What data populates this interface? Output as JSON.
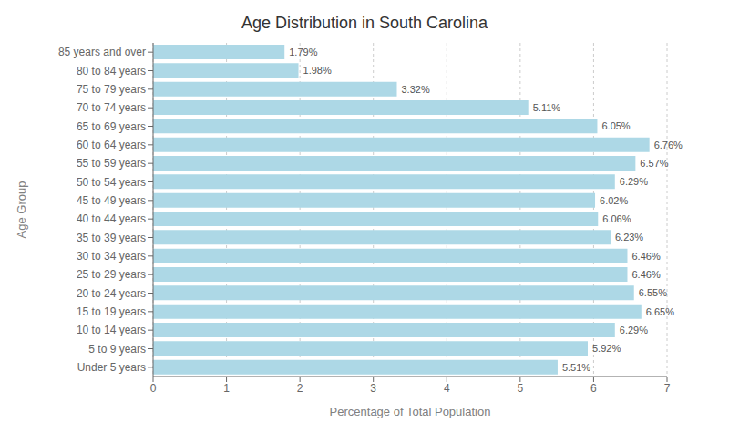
{
  "chart_data": {
    "type": "bar",
    "orientation": "horizontal",
    "title": "Age Distribution in South Carolina",
    "xlabel": "Percentage of Total Population",
    "ylabel": "Age Group",
    "categories": [
      "85 years and over",
      "80 to 84 years",
      "75 to 79 years",
      "70 to 74 years",
      "65 to 69 years",
      "60 to 64 years",
      "55 to 59 years",
      "50 to 54 years",
      "45 to 49 years",
      "40 to 44 years",
      "35 to 39 years",
      "30 to 34 years",
      "25 to 29 years",
      "20 to 24 years",
      "15 to 19 years",
      "10 to 14 years",
      "5 to 9 years",
      "Under 5 years"
    ],
    "values": [
      1.79,
      1.98,
      3.32,
      5.11,
      6.05,
      6.76,
      6.57,
      6.29,
      6.02,
      6.06,
      6.23,
      6.46,
      6.46,
      6.55,
      6.65,
      6.29,
      5.92,
      5.51
    ],
    "value_labels": [
      "1.79%",
      "1.98%",
      "3.32%",
      "5.11%",
      "6.05%",
      "6.76%",
      "6.57%",
      "6.29%",
      "6.02%",
      "6.06%",
      "6.23%",
      "6.46%",
      "6.46%",
      "6.55%",
      "6.65%",
      "6.29%",
      "5.92%",
      "5.51%"
    ],
    "data_labels": true,
    "color": "#ADD8E6",
    "xlim": [
      0,
      7
    ],
    "xticks": [
      0,
      1,
      2,
      3,
      4,
      5,
      6,
      7
    ],
    "grid": true
  }
}
